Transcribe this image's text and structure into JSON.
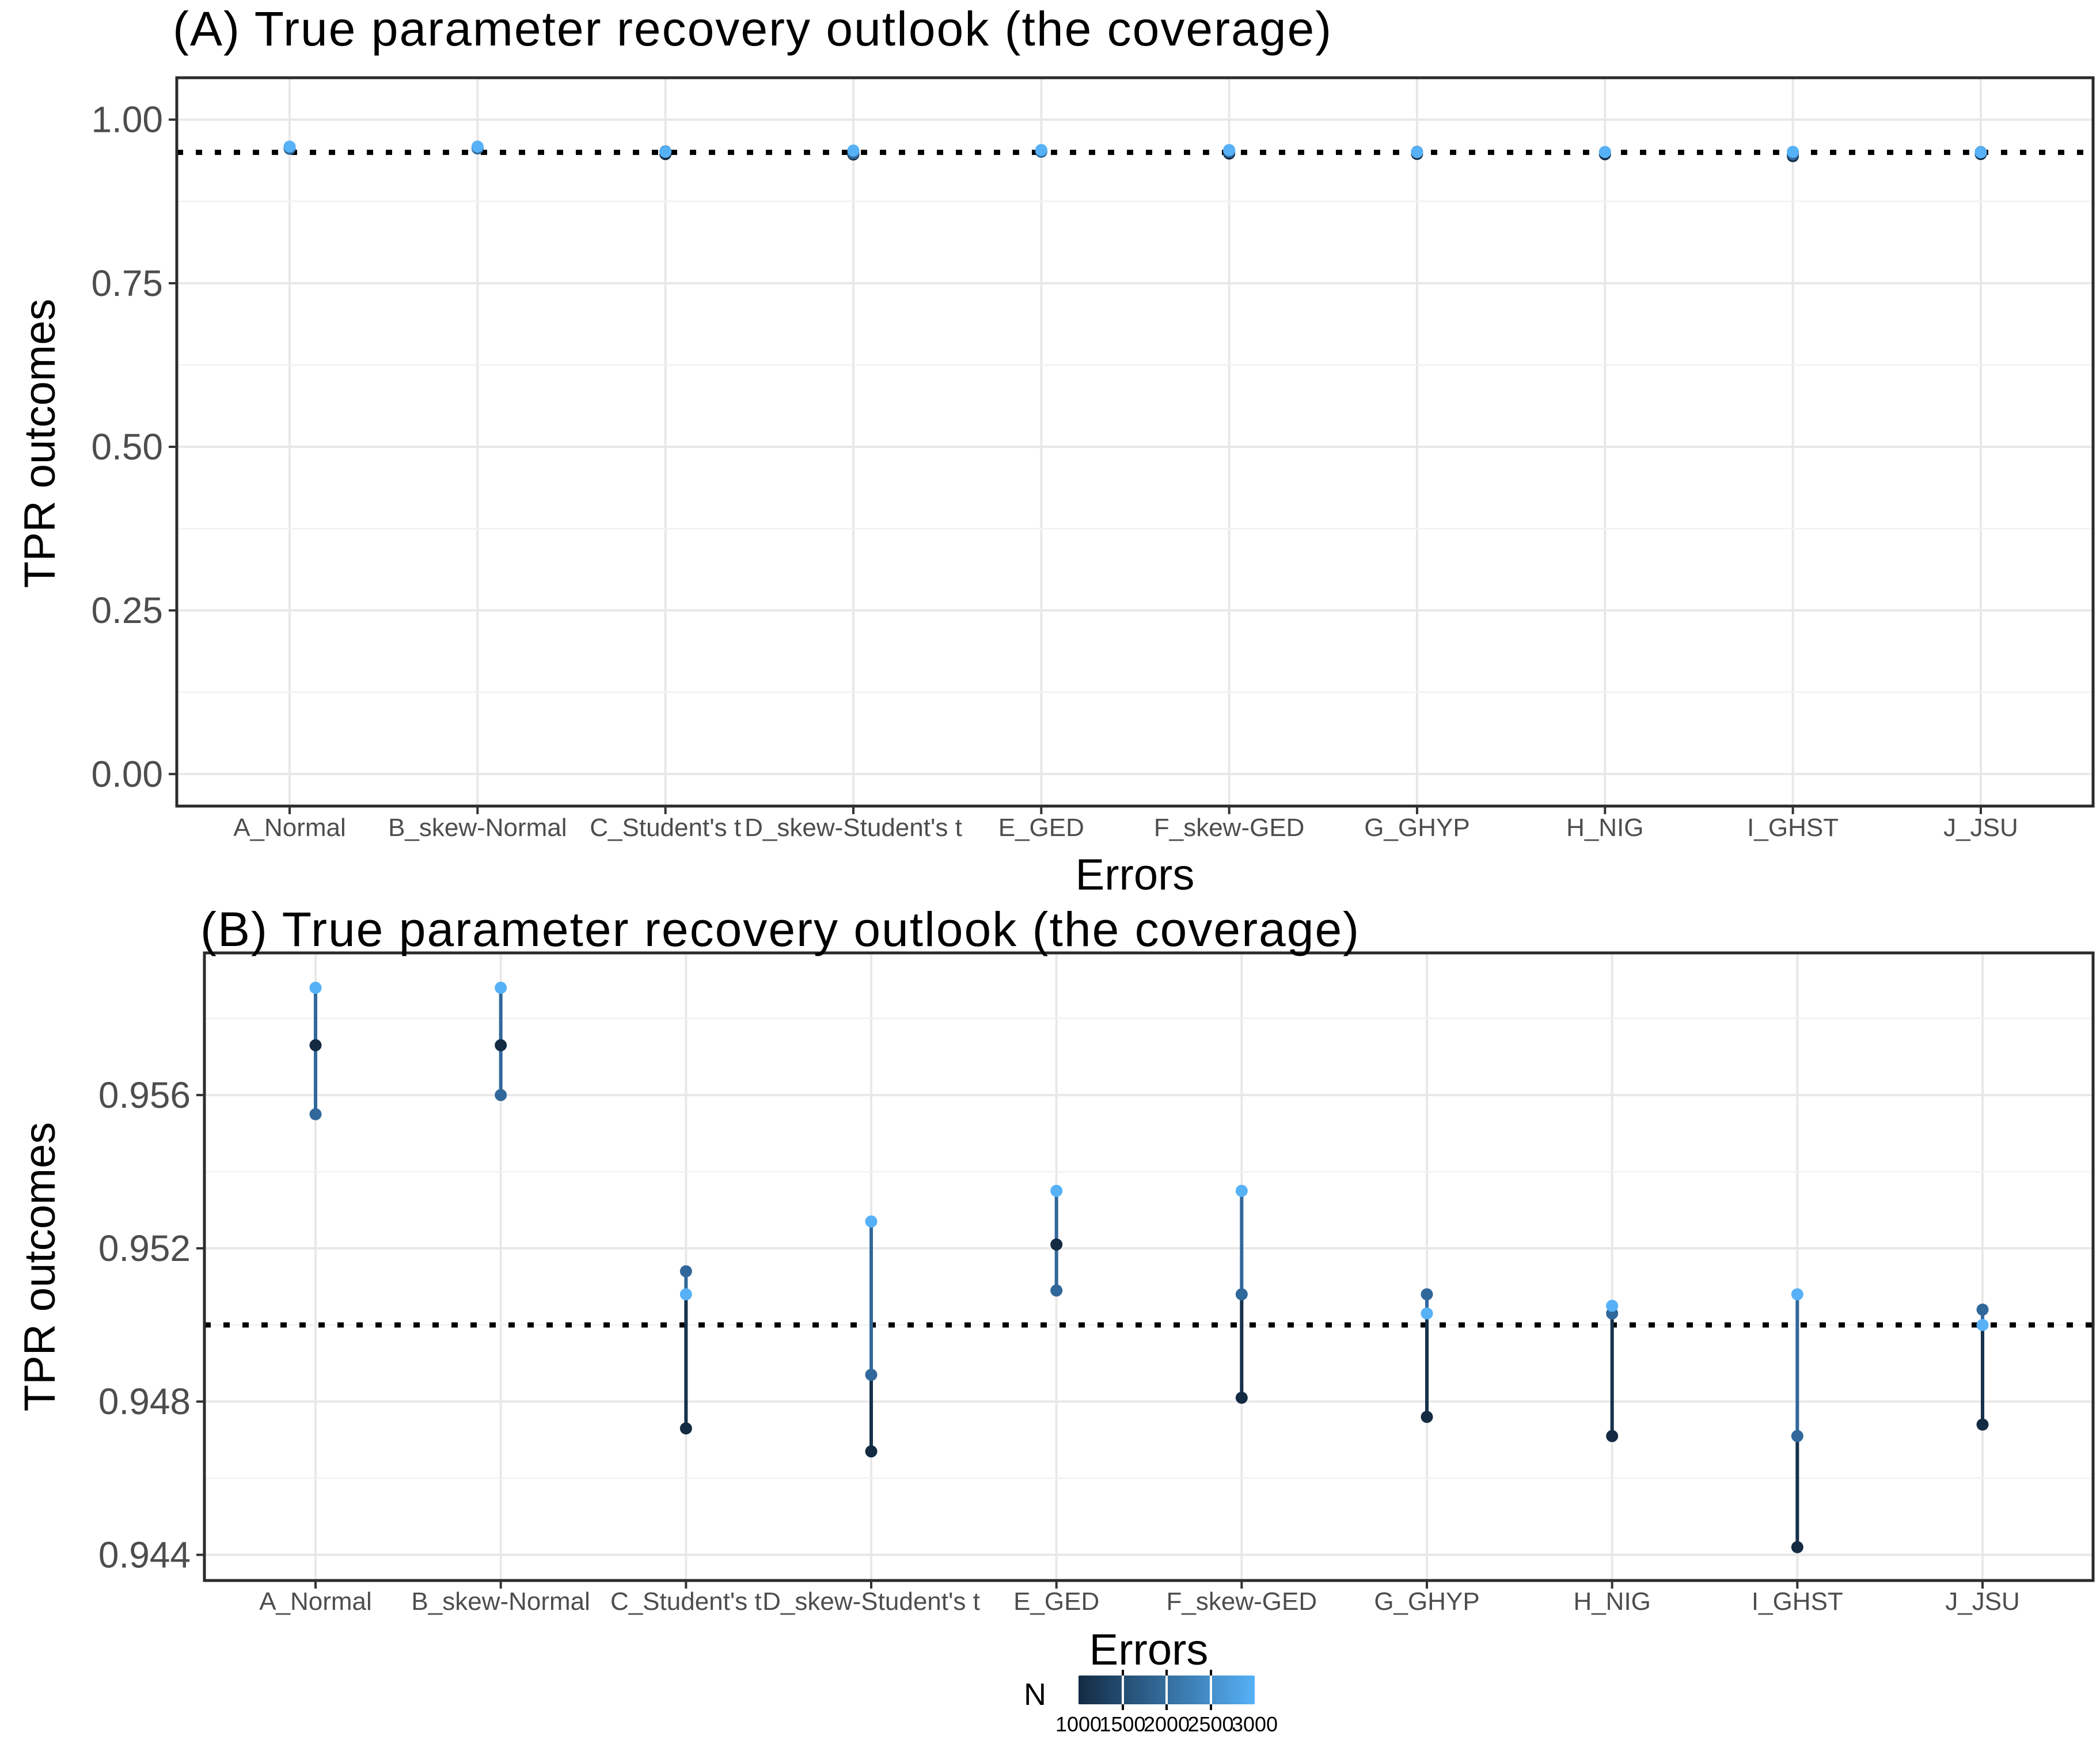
{
  "panels": [
    {
      "key": "A",
      "title": "(A) True parameter recovery outlook (the coverage)",
      "xlabel": "Errors",
      "ylabel": "TPR outcomes"
    },
    {
      "key": "B",
      "title": "(B) True parameter recovery outlook (the coverage)",
      "xlabel": "Errors",
      "ylabel": "TPR outcomes"
    }
  ],
  "legend": {
    "title": "N",
    "min": 1000,
    "max": 3000,
    "tick_labels": [
      "1000",
      "1500",
      "2000",
      "2500",
      "3000"
    ],
    "gradient_start": "#132B43",
    "gradient_end": "#56B1F7"
  },
  "colors": {
    "n1000": "#132B43",
    "n2000": "#31689B",
    "n3000": "#56B1F7",
    "segment_mid": "#31689B",
    "segment_dark": "#16314B",
    "grid_major": "#e8e8e8",
    "grid_minor": "#f2f2f2",
    "tick_label": "#4d4d4d",
    "panel_border": "#2b2b2b",
    "reference_line": "#000000"
  },
  "chart_data": [
    {
      "id": "panel_a",
      "type": "scatter",
      "title": "(A) True parameter recovery outlook (the coverage)",
      "xlabel": "Errors",
      "ylabel": "TPR outcomes",
      "legend_position": "bottom-colorbar",
      "grid": true,
      "categories": [
        "A_Normal",
        "B_skew-Normal",
        "C_Student's t",
        "D_skew-Student's t",
        "E_GED",
        "F_skew-GED",
        "G_GHYP",
        "H_NIG",
        "I_GHST",
        "J_JSU"
      ],
      "ylim": [
        -0.049,
        1.064
      ],
      "y_ticks": [
        0.0,
        0.25,
        0.5,
        0.75,
        1.0
      ],
      "y_tick_labels": [
        "0.00",
        "0.25",
        "0.50",
        "0.75",
        "1.00"
      ],
      "y_minor_ticks": [
        0.125,
        0.375,
        0.625,
        0.875
      ],
      "reference_line": 0.95,
      "series": [
        {
          "name": "N=1000",
          "color": "#132B43",
          "values": [
            0.9573,
            0.9573,
            0.9473,
            0.9467,
            0.9521,
            0.9481,
            0.9476,
            0.9471,
            0.9442,
            0.9474
          ]
        },
        {
          "name": "N=2000",
          "color": "#31689B",
          "values": [
            0.9555,
            0.956,
            0.9514,
            0.9487,
            0.9509,
            0.9508,
            0.9508,
            0.9503,
            0.9471,
            0.9504
          ]
        },
        {
          "name": "N=3000",
          "color": "#56B1F7",
          "values": [
            0.9588,
            0.9588,
            0.9508,
            0.9527,
            0.9535,
            0.9535,
            0.9503,
            0.9505,
            0.9508,
            0.95
          ]
        }
      ],
      "segments": [
        {
          "cat": 0,
          "from": 0.9555,
          "to": 0.9588,
          "color": "#31689B"
        },
        {
          "cat": 1,
          "from": 0.956,
          "to": 0.9588,
          "color": "#31689B"
        },
        {
          "cat": 2,
          "from": 0.9508,
          "to": 0.9514,
          "color": "#31689B"
        },
        {
          "cat": 2,
          "from": 0.9473,
          "to": 0.9508,
          "color": "#16314B"
        },
        {
          "cat": 3,
          "from": 0.9487,
          "to": 0.9527,
          "color": "#31689B"
        },
        {
          "cat": 3,
          "from": 0.9467,
          "to": 0.9487,
          "color": "#16314B"
        },
        {
          "cat": 4,
          "from": 0.9509,
          "to": 0.9535,
          "color": "#31689B"
        },
        {
          "cat": 5,
          "from": 0.9508,
          "to": 0.9535,
          "color": "#31689B"
        },
        {
          "cat": 5,
          "from": 0.9481,
          "to": 0.9508,
          "color": "#16314B"
        },
        {
          "cat": 6,
          "from": 0.9503,
          "to": 0.9508,
          "color": "#31689B"
        },
        {
          "cat": 6,
          "from": 0.9476,
          "to": 0.9503,
          "color": "#16314B"
        },
        {
          "cat": 7,
          "from": 0.9503,
          "to": 0.9505,
          "color": "#31689B"
        },
        {
          "cat": 7,
          "from": 0.9471,
          "to": 0.9503,
          "color": "#16314B"
        },
        {
          "cat": 8,
          "from": 0.9471,
          "to": 0.9508,
          "color": "#31689B"
        },
        {
          "cat": 8,
          "from": 0.9442,
          "to": 0.9471,
          "color": "#16314B"
        },
        {
          "cat": 9,
          "from": 0.95,
          "to": 0.9504,
          "color": "#31689B"
        },
        {
          "cat": 9,
          "from": 0.9474,
          "to": 0.95,
          "color": "#16314B"
        }
      ]
    },
    {
      "id": "panel_b",
      "type": "scatter",
      "title": "(B) True parameter recovery outlook (the coverage)",
      "xlabel": "Errors",
      "ylabel": "TPR outcomes",
      "legend_position": "bottom-colorbar",
      "grid": true,
      "categories": [
        "A_Normal",
        "B_skew-Normal",
        "C_Student's t",
        "D_skew-Student's t",
        "E_GED",
        "F_skew-GED",
        "G_GHYP",
        "H_NIG",
        "I_GHST",
        "J_JSU"
      ],
      "ylim": [
        0.94333,
        0.95971
      ],
      "y_ticks": [
        0.944,
        0.948,
        0.952,
        0.956
      ],
      "y_tick_labels": [
        "0.944",
        "0.948",
        "0.952",
        "0.956"
      ],
      "y_minor_ticks": [
        0.946,
        0.95,
        0.954,
        0.958
      ],
      "reference_line": 0.95,
      "series": [
        {
          "name": "N=1000",
          "color": "#132B43",
          "values": [
            0.9573,
            0.9573,
            0.9473,
            0.9467,
            0.9521,
            0.9481,
            0.9476,
            0.9471,
            0.9442,
            0.9474
          ]
        },
        {
          "name": "N=2000",
          "color": "#31689B",
          "values": [
            0.9555,
            0.956,
            0.9514,
            0.9487,
            0.9509,
            0.9508,
            0.9508,
            0.9503,
            0.9471,
            0.9504
          ]
        },
        {
          "name": "N=3000",
          "color": "#56B1F7",
          "values": [
            0.9588,
            0.9588,
            0.9508,
            0.9527,
            0.9535,
            0.9535,
            0.9503,
            0.9505,
            0.9508,
            0.95
          ]
        }
      ],
      "segments": [
        {
          "cat": 0,
          "from": 0.9555,
          "to": 0.9588,
          "color": "#31689B"
        },
        {
          "cat": 1,
          "from": 0.956,
          "to": 0.9588,
          "color": "#31689B"
        },
        {
          "cat": 2,
          "from": 0.9508,
          "to": 0.9514,
          "color": "#31689B"
        },
        {
          "cat": 2,
          "from": 0.9473,
          "to": 0.9508,
          "color": "#16314B"
        },
        {
          "cat": 3,
          "from": 0.9487,
          "to": 0.9527,
          "color": "#31689B"
        },
        {
          "cat": 3,
          "from": 0.9467,
          "to": 0.9487,
          "color": "#16314B"
        },
        {
          "cat": 4,
          "from": 0.9509,
          "to": 0.9535,
          "color": "#31689B"
        },
        {
          "cat": 5,
          "from": 0.9508,
          "to": 0.9535,
          "color": "#31689B"
        },
        {
          "cat": 5,
          "from": 0.9481,
          "to": 0.9508,
          "color": "#16314B"
        },
        {
          "cat": 6,
          "from": 0.9503,
          "to": 0.9508,
          "color": "#31689B"
        },
        {
          "cat": 6,
          "from": 0.9476,
          "to": 0.9503,
          "color": "#16314B"
        },
        {
          "cat": 7,
          "from": 0.9503,
          "to": 0.9505,
          "color": "#31689B"
        },
        {
          "cat": 7,
          "from": 0.9471,
          "to": 0.9503,
          "color": "#16314B"
        },
        {
          "cat": 8,
          "from": 0.9471,
          "to": 0.9508,
          "color": "#31689B"
        },
        {
          "cat": 8,
          "from": 0.9442,
          "to": 0.9471,
          "color": "#16314B"
        },
        {
          "cat": 9,
          "from": 0.95,
          "to": 0.9504,
          "color": "#31689B"
        },
        {
          "cat": 9,
          "from": 0.9474,
          "to": 0.95,
          "color": "#16314B"
        }
      ]
    }
  ]
}
